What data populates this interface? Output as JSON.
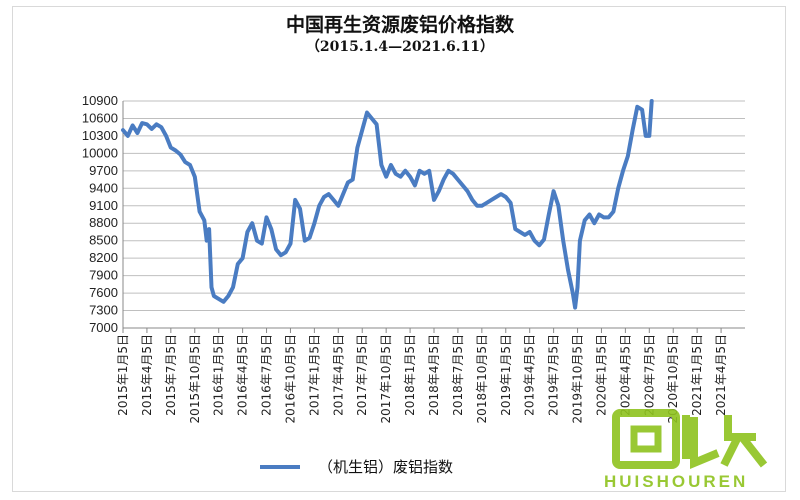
{
  "chart_data": {
    "type": "line",
    "title": "中国再生资源废铝价格指数",
    "subtitle": "（2015.1.4—2021.6.11）",
    "ylim": [
      7000,
      10900
    ],
    "yticks": [
      7000,
      7300,
      7600,
      7900,
      8200,
      8500,
      8800,
      9100,
      9400,
      9700,
      10000,
      10300,
      10600,
      10900
    ],
    "xtick_labels": [
      "2015年1月5日",
      "2015年4月5日",
      "2015年7月5日",
      "2015年10月5日",
      "2016年1月5日",
      "2016年4月5日",
      "2016年7月5日",
      "2016年10月5日",
      "2017年1月5日",
      "2017年4月5日",
      "2017年7月5日",
      "2017年10月5日",
      "2018年1月5日",
      "2018年4月5日",
      "2018年7月5日",
      "2018年10月5日",
      "2019年1月5日",
      "2019年4月5日",
      "2019年7月5日",
      "2019年10月5日",
      "2020年1月5日",
      "2020年4月5日",
      "2020年7月5日",
      "2020年10月5日",
      "2021年1月5日",
      "2021年4月5日"
    ],
    "series": [
      {
        "name": "（机生铝）废铝指数",
        "color": "#4a7cc2",
        "points": [
          [
            0,
            10400
          ],
          [
            0.2,
            10300
          ],
          [
            0.4,
            10480
          ],
          [
            0.6,
            10350
          ],
          [
            0.8,
            10520
          ],
          [
            1.0,
            10500
          ],
          [
            1.2,
            10420
          ],
          [
            1.4,
            10500
          ],
          [
            1.6,
            10450
          ],
          [
            1.8,
            10300
          ],
          [
            2.0,
            10100
          ],
          [
            2.2,
            10050
          ],
          [
            2.4,
            9980
          ],
          [
            2.6,
            9850
          ],
          [
            2.8,
            9800
          ],
          [
            3.0,
            9600
          ],
          [
            3.2,
            9000
          ],
          [
            3.4,
            8850
          ],
          [
            3.5,
            8500
          ],
          [
            3.6,
            8700
          ],
          [
            3.7,
            7700
          ],
          [
            3.8,
            7550
          ],
          [
            4.0,
            7500
          ],
          [
            4.2,
            7450
          ],
          [
            4.4,
            7550
          ],
          [
            4.6,
            7700
          ],
          [
            4.8,
            8100
          ],
          [
            5.0,
            8200
          ],
          [
            5.2,
            8650
          ],
          [
            5.4,
            8800
          ],
          [
            5.6,
            8500
          ],
          [
            5.8,
            8450
          ],
          [
            6.0,
            8900
          ],
          [
            6.2,
            8700
          ],
          [
            6.4,
            8350
          ],
          [
            6.6,
            8250
          ],
          [
            6.8,
            8300
          ],
          [
            7.0,
            8450
          ],
          [
            7.2,
            9200
          ],
          [
            7.4,
            9050
          ],
          [
            7.6,
            8500
          ],
          [
            7.8,
            8550
          ],
          [
            8.0,
            8800
          ],
          [
            8.2,
            9100
          ],
          [
            8.4,
            9250
          ],
          [
            8.6,
            9300
          ],
          [
            8.8,
            9200
          ],
          [
            9.0,
            9100
          ],
          [
            9.2,
            9300
          ],
          [
            9.4,
            9500
          ],
          [
            9.6,
            9550
          ],
          [
            9.8,
            10100
          ],
          [
            10.0,
            10400
          ],
          [
            10.2,
            10700
          ],
          [
            10.4,
            10600
          ],
          [
            10.6,
            10500
          ],
          [
            10.8,
            9800
          ],
          [
            11.0,
            9600
          ],
          [
            11.2,
            9800
          ],
          [
            11.4,
            9650
          ],
          [
            11.6,
            9600
          ],
          [
            11.8,
            9700
          ],
          [
            12.0,
            9600
          ],
          [
            12.2,
            9450
          ],
          [
            12.4,
            9700
          ],
          [
            12.6,
            9650
          ],
          [
            12.8,
            9700
          ],
          [
            13.0,
            9200
          ],
          [
            13.2,
            9350
          ],
          [
            13.4,
            9550
          ],
          [
            13.6,
            9700
          ],
          [
            13.8,
            9650
          ],
          [
            14.0,
            9550
          ],
          [
            14.2,
            9450
          ],
          [
            14.4,
            9350
          ],
          [
            14.6,
            9200
          ],
          [
            14.8,
            9100
          ],
          [
            15.0,
            9100
          ],
          [
            15.2,
            9150
          ],
          [
            15.4,
            9200
          ],
          [
            15.6,
            9250
          ],
          [
            15.8,
            9300
          ],
          [
            16.0,
            9250
          ],
          [
            16.2,
            9150
          ],
          [
            16.4,
            8700
          ],
          [
            16.6,
            8650
          ],
          [
            16.8,
            8600
          ],
          [
            17.0,
            8650
          ],
          [
            17.2,
            8500
          ],
          [
            17.4,
            8420
          ],
          [
            17.6,
            8520
          ],
          [
            17.8,
            8950
          ],
          [
            18.0,
            9350
          ],
          [
            18.2,
            9100
          ],
          [
            18.4,
            8500
          ],
          [
            18.6,
            8000
          ],
          [
            18.8,
            7600
          ],
          [
            18.9,
            7350
          ],
          [
            19.0,
            7700
          ],
          [
            19.1,
            8500
          ],
          [
            19.3,
            8850
          ],
          [
            19.5,
            8950
          ],
          [
            19.7,
            8800
          ],
          [
            19.9,
            8950
          ],
          [
            20.1,
            8900
          ],
          [
            20.3,
            8900
          ],
          [
            20.5,
            9000
          ],
          [
            20.7,
            9400
          ],
          [
            20.9,
            9700
          ],
          [
            21.1,
            9950
          ],
          [
            21.3,
            10400
          ],
          [
            21.5,
            10800
          ],
          [
            21.7,
            10750
          ],
          [
            21.85,
            10300
          ],
          [
            22.0,
            10300
          ],
          [
            22.1,
            10900
          ]
        ]
      }
    ],
    "legend": {
      "label": "（机生铝）废铝指数",
      "placement": "bottom"
    }
  },
  "watermark": {
    "main": "回收",
    "sub": "HUISHOUREN"
  }
}
